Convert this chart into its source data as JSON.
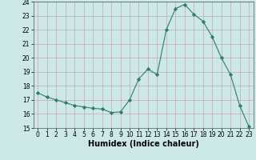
{
  "x": [
    0,
    1,
    2,
    3,
    4,
    5,
    6,
    7,
    8,
    9,
    10,
    11,
    12,
    13,
    14,
    15,
    16,
    17,
    18,
    19,
    20,
    21,
    22,
    23
  ],
  "y": [
    17.5,
    17.2,
    17.0,
    16.8,
    16.6,
    16.5,
    16.4,
    16.35,
    16.1,
    16.15,
    17.0,
    18.5,
    19.2,
    18.8,
    22.0,
    23.5,
    23.8,
    23.1,
    22.6,
    21.5,
    20.0,
    18.8,
    16.6,
    15.1
  ],
  "line_color": "#2e7d6e",
  "marker": "D",
  "marker_size": 2.2,
  "bg_color": "#cce8e8",
  "grid_color": "#c8a8a8",
  "xlabel": "Humidex (Indice chaleur)",
  "ylim": [
    15,
    24
  ],
  "xlim": [
    -0.5,
    23.5
  ],
  "yticks": [
    15,
    16,
    17,
    18,
    19,
    20,
    21,
    22,
    23,
    24
  ],
  "xticks": [
    0,
    1,
    2,
    3,
    4,
    5,
    6,
    7,
    8,
    9,
    10,
    11,
    12,
    13,
    14,
    15,
    16,
    17,
    18,
    19,
    20,
    21,
    22,
    23
  ],
  "tick_fontsize": 5.5,
  "xlabel_fontsize": 7,
  "xlabel_fontweight": "bold"
}
